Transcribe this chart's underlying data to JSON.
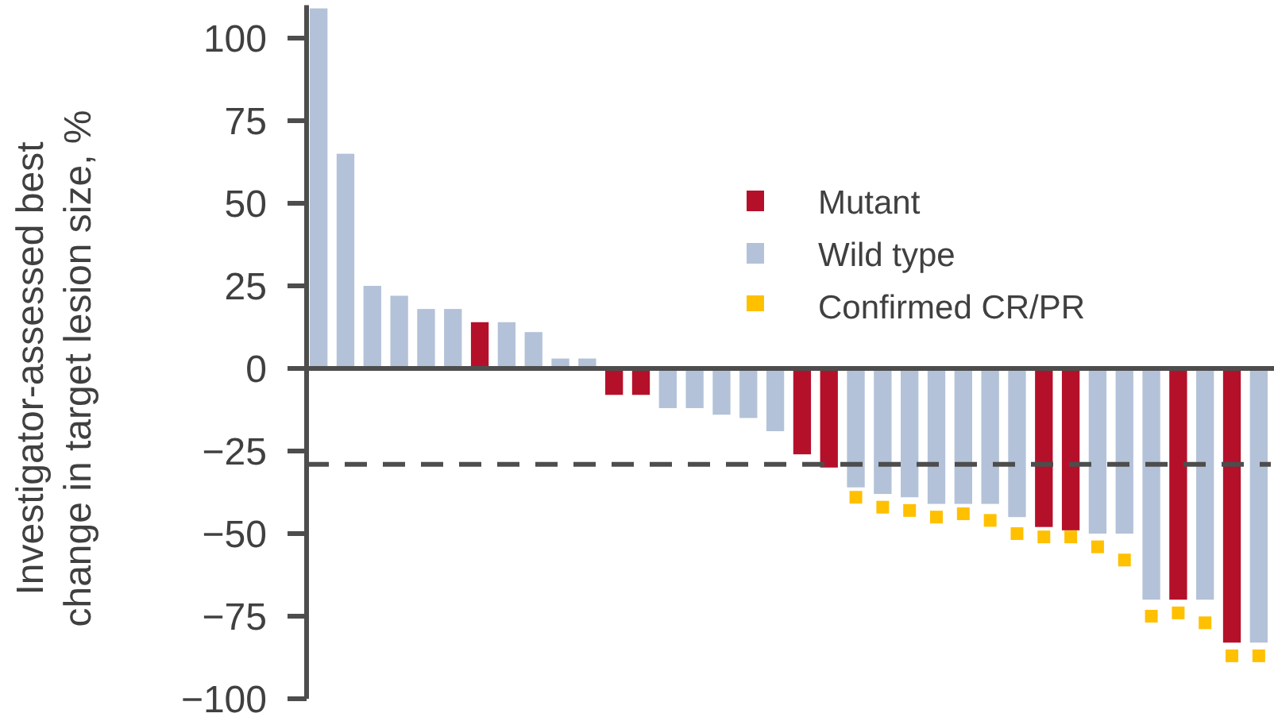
{
  "chart_data": {
    "type": "bar",
    "ylabel": "Investigator-assessed best change in target lesion size, %",
    "categories": [
      null,
      null,
      null,
      null,
      null,
      null,
      null,
      null,
      null,
      null,
      null,
      null,
      null,
      null,
      null,
      null,
      null,
      null,
      null,
      null,
      null,
      null,
      null,
      null,
      null,
      null,
      null,
      null,
      null,
      null,
      null,
      null,
      null,
      null,
      null,
      null
    ],
    "series": [
      {
        "name": "Mutant",
        "color": "#b5102a",
        "values": [
          null,
          null,
          null,
          null,
          null,
          null,
          14,
          null,
          null,
          null,
          null,
          -8,
          -8,
          null,
          null,
          null,
          null,
          null,
          -26,
          -30,
          null,
          null,
          null,
          null,
          null,
          null,
          null,
          -48,
          -49,
          null,
          null,
          null,
          -70,
          null,
          -83,
          null
        ]
      },
      {
        "name": "Wild type",
        "color": "#b3c2d8",
        "values": [
          109,
          65,
          25,
          22,
          18,
          18,
          null,
          14,
          11,
          3,
          3,
          null,
          null,
          -12,
          -12,
          -14,
          -15,
          -19,
          null,
          null,
          -36,
          -38,
          -39,
          -41,
          -41,
          -41,
          -45,
          null,
          null,
          -50,
          -50,
          -70,
          null,
          -70,
          null,
          -83
        ]
      },
      {
        "name": "Confirmed CR/PR",
        "type": "scatter",
        "marker": "square",
        "color": "#ffc000",
        "values": [
          null,
          null,
          null,
          null,
          null,
          null,
          null,
          null,
          null,
          null,
          null,
          null,
          null,
          null,
          null,
          null,
          null,
          null,
          null,
          null,
          -39,
          -42,
          -43,
          -45,
          -44,
          -46,
          -50,
          -51,
          -51,
          -54,
          -58,
          -75,
          -74,
          -77,
          -87,
          -87
        ]
      }
    ],
    "ylim": [
      -100,
      110
    ],
    "yticks": [
      {
        "value": -100,
        "label": "−100"
      },
      {
        "value": -75,
        "label": "−75"
      },
      {
        "value": -50,
        "label": "−50"
      },
      {
        "value": -25,
        "label": "−25"
      },
      0,
      25,
      50,
      75,
      100
    ],
    "ref_lines": [
      {
        "axis": "y",
        "value": -29,
        "color": "#4d4d4d",
        "line_style": "dashed"
      }
    ],
    "stacked": true,
    "legend": "top right"
  }
}
